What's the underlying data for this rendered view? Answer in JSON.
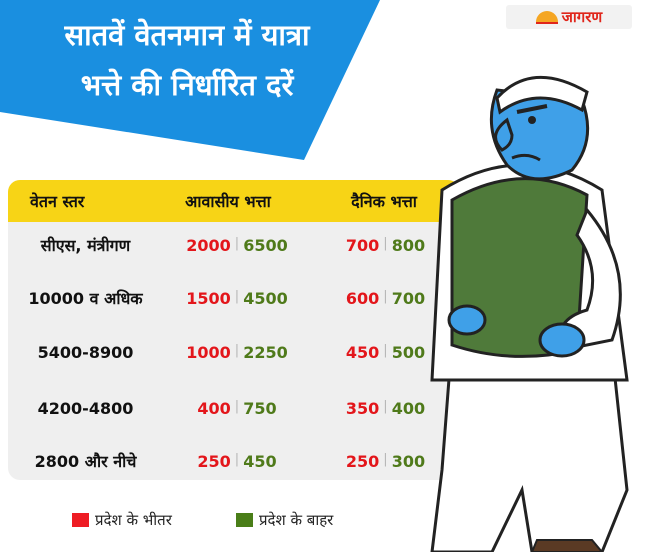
{
  "header": {
    "title_line1": "सातवें वेतनमान में यात्रा",
    "title_line2": "भत्ते की निर्धारित दरें"
  },
  "logo": {
    "text": "जागरण"
  },
  "table": {
    "headers": [
      "वेतन स्तर",
      "आवासीय भत्ता",
      "दैनिक भत्ता"
    ],
    "rows": [
      {
        "level": "सीएस, मंत्रीगण",
        "residential_inside": "2000",
        "residential_outside": "6500",
        "daily_inside": "700",
        "daily_outside": "800"
      },
      {
        "level": "10000 व अधिक",
        "residential_inside": "1500",
        "residential_outside": "4500",
        "daily_inside": "600",
        "daily_outside": "700"
      },
      {
        "level": "5400-8900",
        "residential_inside": "1000",
        "residential_outside": "2250",
        "daily_inside": "450",
        "daily_outside": "500"
      },
      {
        "level": "4200-4800",
        "residential_inside": "400",
        "residential_outside": "750",
        "daily_inside": "350",
        "daily_outside": "400"
      },
      {
        "level": "2800 और नीचे",
        "residential_inside": "250",
        "residential_outside": "450",
        "daily_inside": "250",
        "daily_outside": "300"
      }
    ]
  },
  "legend": {
    "inside": "प्रदेश के भीतर",
    "outside": "प्रदेश के बाहर"
  },
  "colors": {
    "banner": "#1a8fe0",
    "header_row": "#f7d416",
    "inside": "#e3161b",
    "outside": "#4f7a1a"
  },
  "illustration": {
    "icon": "politician-cartoon"
  }
}
